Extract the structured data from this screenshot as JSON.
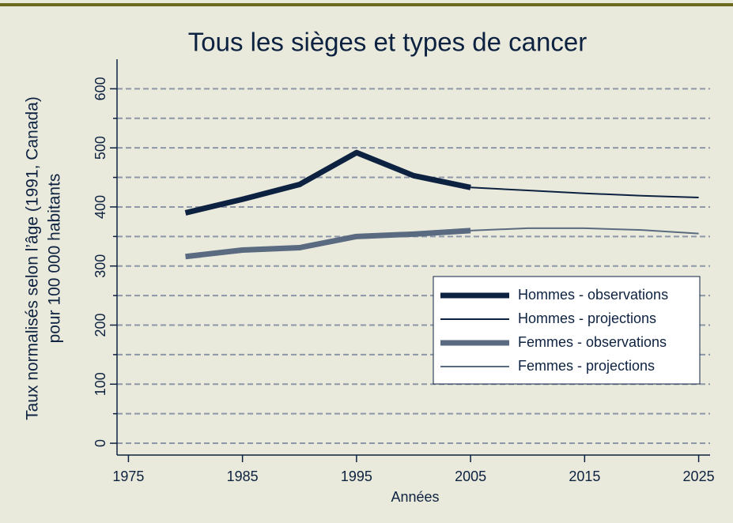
{
  "chart_data": {
    "type": "line",
    "title": "Tous les sièges et types de cancer",
    "x_label": "Années",
    "y_label": [
      "Taux normalisés selon l’âge (1991, Canada)",
      "pour 100 000 habitants"
    ],
    "xlim": [
      1974,
      2026
    ],
    "xticks": [
      1975,
      1985,
      1995,
      2005,
      2015,
      2025
    ],
    "ylim": [
      -20,
      650
    ],
    "yticks": [
      0,
      100,
      200,
      300,
      400,
      500,
      600
    ],
    "yminorticks": [
      50,
      150,
      250,
      350,
      450,
      550
    ],
    "grid": true,
    "legend": "lower right",
    "series": [
      {
        "name": "Hommes - observations",
        "color": "#0d2240",
        "width": 7,
        "x": [
          1980,
          1985,
          1990,
          1995,
          2000,
          2005
        ],
        "values": [
          390,
          413,
          438,
          492,
          453,
          433
        ]
      },
      {
        "name": "Hommes - projections",
        "color": "#0d2240",
        "width": 2,
        "x": [
          2005,
          2010,
          2015,
          2020,
          2025
        ],
        "values": [
          433,
          428,
          423,
          419,
          416
        ]
      },
      {
        "name": "Femmes - observations",
        "color": "#5a6a80",
        "width": 7,
        "x": [
          1980,
          1985,
          1990,
          1995,
          2000,
          2005
        ],
        "values": [
          316,
          327,
          331,
          350,
          354,
          360
        ]
      },
      {
        "name": "Femmes - projections",
        "color": "#5a6a80",
        "width": 2,
        "x": [
          2005,
          2010,
          2015,
          2020,
          2025
        ],
        "values": [
          360,
          364,
          364,
          361,
          355
        ]
      }
    ]
  }
}
